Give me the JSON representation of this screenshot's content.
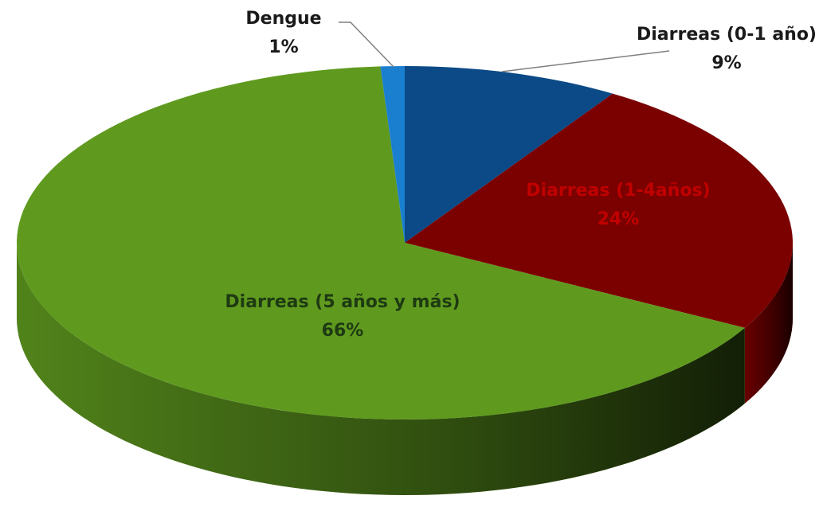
{
  "chart_data": {
    "type": "pie3d",
    "categories": [
      "Diarreas (0-1 año)",
      "Diarreas (1-4años)",
      "Diarreas (5 años y más)",
      "Dengue"
    ],
    "values": [
      9,
      24,
      66,
      1
    ],
    "value_labels": [
      "9%",
      "24%",
      "66%",
      "1%"
    ],
    "colors": [
      "#0b4a86",
      "#7b0000",
      "#5f9a1f",
      "#1b7fcf"
    ]
  }
}
